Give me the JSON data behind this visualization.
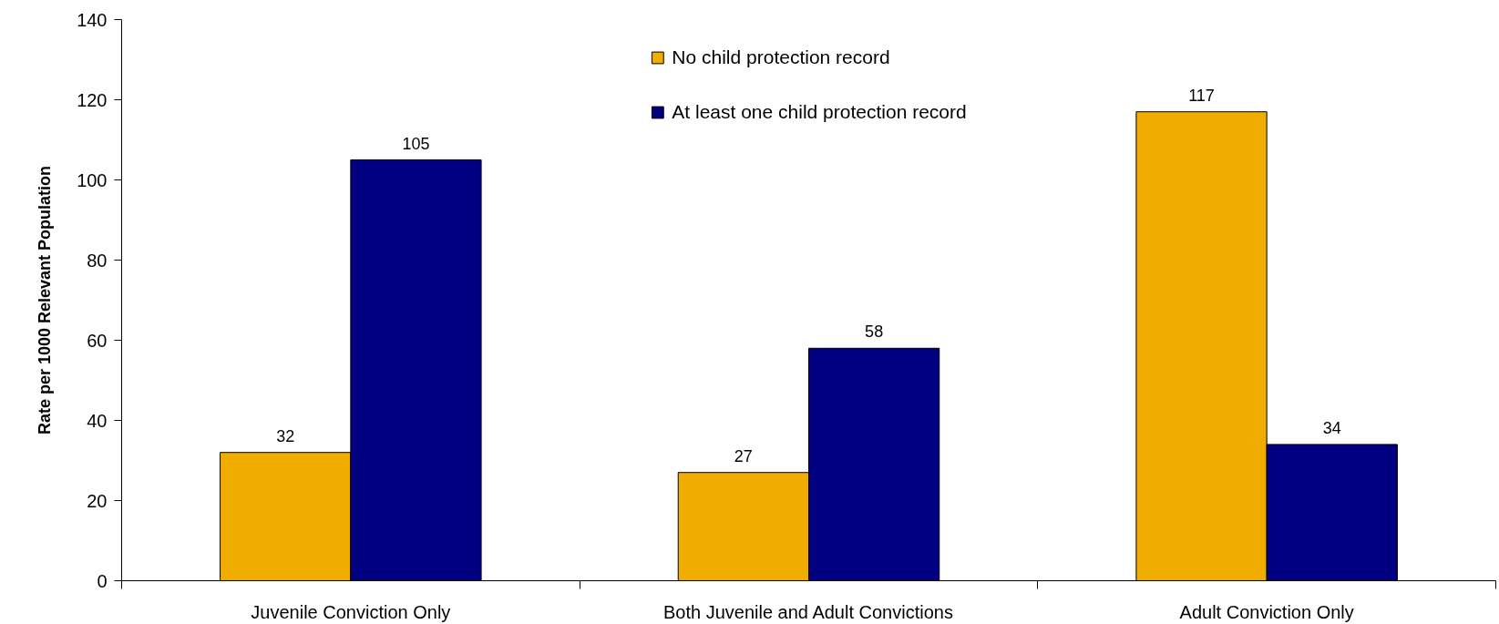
{
  "chart_data": {
    "type": "bar",
    "ylabel": "Rate per 1000 Relevant Population",
    "categories": [
      "Juvenile Conviction Only",
      "Both Juvenile and Adult Convictions",
      "Adult Conviction Only"
    ],
    "series": [
      {
        "name": "No child protection record",
        "color": "#f0ad00",
        "values": [
          32,
          27,
          117
        ]
      },
      {
        "name": "At least one child protection record",
        "color": "#000080",
        "values": [
          105,
          58,
          34
        ]
      }
    ],
    "ylim": [
      0,
      140
    ],
    "yticks": [
      0,
      20,
      40,
      60,
      80,
      100,
      120,
      140
    ],
    "data_labels": true,
    "legend": "top",
    "grid": false
  }
}
